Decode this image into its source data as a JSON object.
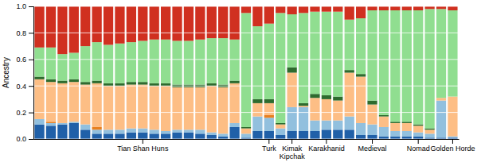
{
  "chart_data": {
    "type": "bar",
    "stacked": true,
    "ylabel": "Ancestry",
    "categories": [
      null,
      null,
      null,
      null,
      null,
      null,
      null,
      null,
      null,
      "Tian Shan Huns",
      null,
      null,
      null,
      null,
      null,
      null,
      null,
      null,
      null,
      null,
      "Turk",
      null,
      "Kimak\nKipchak",
      null,
      null,
      "Karakhanid",
      null,
      null,
      null,
      "Medieval",
      null,
      null,
      null,
      "Nomad",
      null,
      null,
      "Golden Horde"
    ],
    "series": [
      {
        "color": "#2060A8",
        "values": [
          0.11,
          0.1,
          0.11,
          0.12,
          0.07,
          0.04,
          0.04,
          0.04,
          0.05,
          0.05,
          0.04,
          0.04,
          0.05,
          0.05,
          0.04,
          0.03,
          0.02,
          0.09,
          0.01,
          0.06,
          0.06,
          0.03,
          0.06,
          0.06,
          0.06,
          0.07,
          0.07,
          0.07,
          0.03,
          0.03,
          0.02,
          0.02,
          0.02,
          0.02,
          0.01,
          0.01,
          0.01
        ]
      },
      {
        "color": "#92C0DE",
        "values": [
          0.04,
          0.02,
          0.01,
          0.01,
          0.04,
          0.03,
          0.03,
          0.03,
          0.03,
          0.03,
          0.03,
          0.02,
          0.02,
          0.02,
          0.03,
          0.02,
          0.02,
          0.03,
          0.03,
          0.11,
          0.1,
          0.05,
          0.18,
          0.18,
          0.08,
          0.07,
          0.07,
          0.1,
          0.09,
          0.08,
          0.07,
          0.04,
          0.04,
          0.03,
          0.03,
          0.28,
          0.01
        ]
      },
      {
        "color": "#E88020",
        "values": [
          0.0,
          0.01,
          0.0,
          0.0,
          0.0,
          0.02,
          0.0,
          0.0,
          0.0,
          0.0,
          0.0,
          0.0,
          0.0,
          0.0,
          0.0,
          0.0,
          0.0,
          0.0,
          0.0,
          0.0,
          0.02,
          0.0,
          0.0,
          0.0,
          0.0,
          0.0,
          0.0,
          0.0,
          0.0,
          0.0,
          0.0,
          0.0,
          0.0,
          0.0,
          0.0,
          0.0,
          0.0
        ]
      },
      {
        "color": "#FDBE85",
        "values": [
          0.3,
          0.3,
          0.3,
          0.3,
          0.3,
          0.33,
          0.33,
          0.33,
          0.33,
          0.33,
          0.33,
          0.34,
          0.32,
          0.32,
          0.32,
          0.35,
          0.35,
          0.3,
          0.04,
          0.1,
          0.09,
          0.03,
          0.26,
          0.01,
          0.17,
          0.16,
          0.15,
          0.33,
          0.35,
          0.15,
          0.08,
          0.06,
          0.06,
          0.05,
          0.03,
          0.02,
          0.3
        ]
      },
      {
        "color": "#2E6B2E",
        "values": [
          0.02,
          0.02,
          0.02,
          0.02,
          0.02,
          0.02,
          0.02,
          0.02,
          0.02,
          0.02,
          0.02,
          0.02,
          0.02,
          0.02,
          0.02,
          0.02,
          0.02,
          0.02,
          0.01,
          0.03,
          0.03,
          0.01,
          0.04,
          0.02,
          0.03,
          0.03,
          0.03,
          0.02,
          0.02,
          0.03,
          0.01,
          0.01,
          0.01,
          0.01,
          0.01,
          0.0,
          0.0
        ]
      },
      {
        "color": "#90DE90",
        "values": [
          0.22,
          0.24,
          0.2,
          0.2,
          0.27,
          0.29,
          0.29,
          0.3,
          0.3,
          0.31,
          0.33,
          0.33,
          0.33,
          0.33,
          0.34,
          0.34,
          0.35,
          0.31,
          0.86,
          0.55,
          0.57,
          0.83,
          0.4,
          0.68,
          0.62,
          0.63,
          0.64,
          0.38,
          0.42,
          0.68,
          0.79,
          0.84,
          0.84,
          0.86,
          0.9,
          0.67,
          0.65
        ]
      },
      {
        "color": "#D03020",
        "values": [
          0.31,
          0.31,
          0.36,
          0.35,
          0.3,
          0.27,
          0.29,
          0.28,
          0.27,
          0.26,
          0.25,
          0.25,
          0.26,
          0.26,
          0.25,
          0.24,
          0.24,
          0.25,
          0.05,
          0.15,
          0.13,
          0.05,
          0.06,
          0.05,
          0.04,
          0.04,
          0.04,
          0.1,
          0.09,
          0.03,
          0.03,
          0.03,
          0.03,
          0.03,
          0.02,
          0.02,
          0.03
        ]
      }
    ],
    "ylim": [
      0.0,
      1.0
    ],
    "yticks": [
      {
        "value": 0.0,
        "label": "0.0"
      },
      0.2,
      0.4,
      0.6,
      0.8,
      {
        "value": 1.0,
        "label": "1.0"
      }
    ],
    "grid": true
  }
}
